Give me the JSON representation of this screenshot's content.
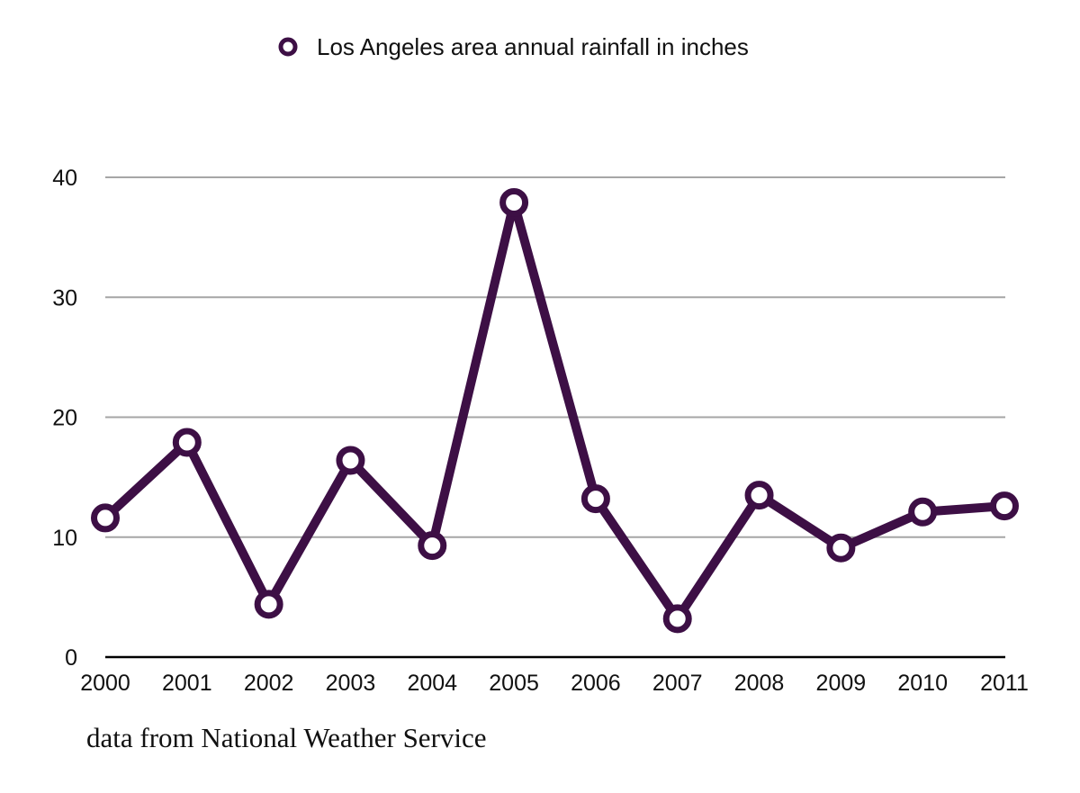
{
  "chart_data": {
    "type": "line",
    "title": "",
    "xlabel": "",
    "ylabel": "",
    "legend": {
      "position": "top-center",
      "entries": [
        "Los Angeles area annual rainfall in inches"
      ]
    },
    "categories": [
      "2000",
      "2001",
      "2002",
      "2003",
      "2004",
      "2005",
      "2006",
      "2007",
      "2008",
      "2009",
      "2010",
      "2011"
    ],
    "series": [
      {
        "name": "Los Angeles area annual rainfall in inches",
        "values": [
          11.6,
          17.9,
          4.4,
          16.4,
          9.3,
          37.9,
          13.2,
          3.2,
          13.5,
          9.1,
          12.1,
          12.6
        ],
        "color": "#3d0f45"
      }
    ],
    "ylim": [
      0,
      40
    ],
    "yticks": [
      0,
      10,
      20,
      30,
      40
    ],
    "grid": true
  },
  "footnote": "data from National Weather Service"
}
